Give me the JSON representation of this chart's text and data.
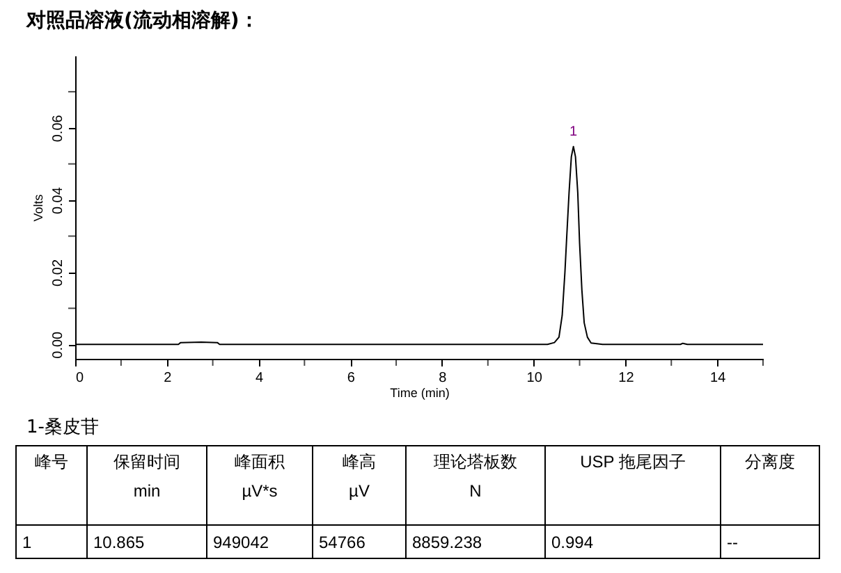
{
  "chart_data": {
    "type": "line",
    "title": "对照品溶液(流动相溶解)：",
    "xlabel": "Time (min)",
    "ylabel": "Volts",
    "x": [
      0,
      2.25,
      2.3,
      2.75,
      3.1,
      3.15,
      10.3,
      10.45,
      10.55,
      10.62,
      10.68,
      10.72,
      10.77,
      10.82,
      10.865,
      10.91,
      10.96,
      11.0,
      11.05,
      11.1,
      11.17,
      11.25,
      11.5,
      13.2,
      13.25,
      13.35,
      15
    ],
    "series": [
      {
        "color": "#000000",
        "values": [
          0,
          0,
          0.0005,
          0.0006,
          0.0005,
          0,
          0,
          0.0005,
          0.002,
          0.008,
          0.02,
          0.03,
          0.042,
          0.052,
          0.0548,
          0.052,
          0.042,
          0.028,
          0.015,
          0.006,
          0.002,
          0.0004,
          0,
          0,
          0.0003,
          0,
          0
        ]
      }
    ],
    "xlim": [
      0,
      15
    ],
    "ylim": [
      -0.004,
      0.08
    ],
    "xticks": [
      0,
      {
        "value": 1,
        "label": null
      },
      2,
      {
        "value": 3,
        "label": null
      },
      4,
      {
        "value": 5,
        "label": null
      },
      6,
      {
        "value": 7,
        "label": null
      },
      8,
      {
        "value": 9,
        "label": null
      },
      10,
      {
        "value": 11,
        "label": null
      },
      12,
      {
        "value": 13,
        "label": null
      },
      14,
      {
        "value": 15,
        "label": null
      }
    ],
    "yticks": [
      {
        "value": 0,
        "label": "0.00"
      },
      {
        "value": 0.01,
        "label": null
      },
      {
        "value": 0.02,
        "label": "0.02"
      },
      {
        "value": 0.03,
        "label": null
      },
      {
        "value": 0.04,
        "label": "0.04"
      },
      {
        "value": 0.05,
        "label": null
      },
      {
        "value": 0.06,
        "label": "0.06"
      },
      {
        "value": 0.07,
        "label": null
      }
    ],
    "grid": false,
    "annotations": [
      {
        "text": "1",
        "x": 10.865,
        "y": 0.0548
      },
      "1-桑皮苷",
      "峰号",
      "保留时间\nmin",
      "峰面积\nµV*s",
      "峰高\nµV",
      "理论塔板数\nN",
      "USP 拖尾因子",
      "分离度",
      "1",
      "10.865",
      "949042",
      "54766",
      "8859.238",
      "0.994",
      "--"
    ]
  }
}
